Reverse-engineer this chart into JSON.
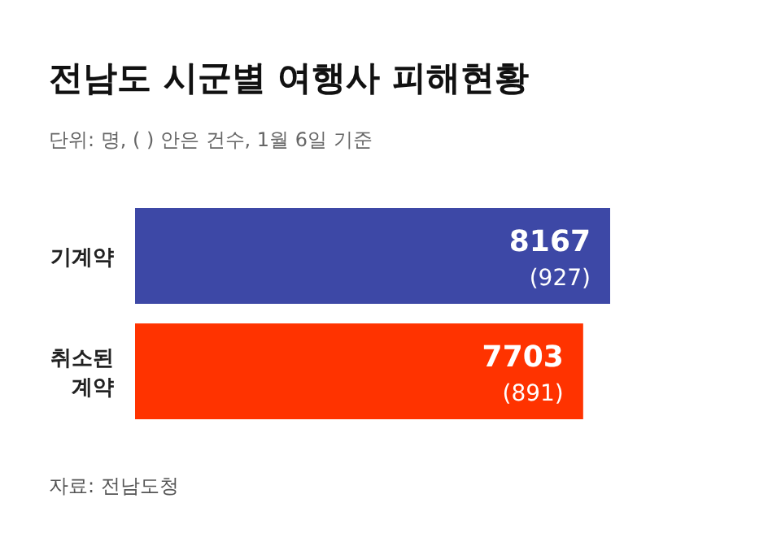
{
  "chart_data": {
    "type": "bar",
    "orientation": "horizontal",
    "title": "전남도 시군별 여행사 피해현황",
    "subtitle": "단위: 명, ( ) 안은 건수, 1월 6일 기준",
    "categories": [
      "기계약",
      "취소된\n계약"
    ],
    "values": [
      8167,
      7703
    ],
    "colors": [
      "#3d48a6",
      "#ff3300"
    ],
    "value_labels": [
      "8167\n(927)",
      "7703\n(891)"
    ],
    "annotations": [
      "자료: 전남도청"
    ]
  }
}
